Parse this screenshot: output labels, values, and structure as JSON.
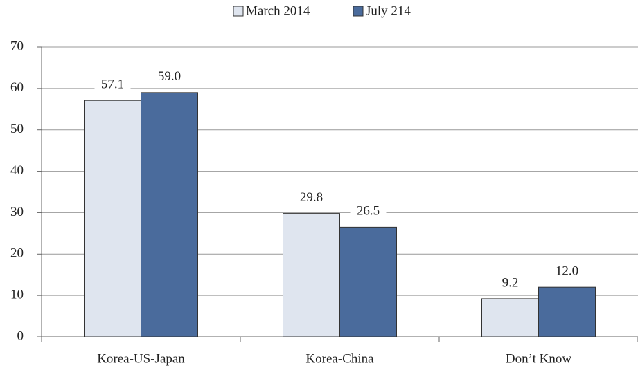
{
  "chart_data": {
    "type": "bar",
    "categories": [
      "Korea-US-Japan",
      "Korea-China",
      "Don’t Know"
    ],
    "series": [
      {
        "name": "March 2014",
        "color": "#dfe5ef",
        "values": [
          57.1,
          29.8,
          9.2
        ],
        "value_labels": [
          "57.1",
          "29.8",
          "9.2"
        ]
      },
      {
        "name": "July 214",
        "color": "#4a6b9c",
        "values": [
          59,
          26.5,
          12
        ],
        "value_labels": [
          "59.0",
          "26.5",
          "12.0"
        ]
      }
    ],
    "ylim": [
      0,
      70
    ],
    "yticks": [
      0,
      10,
      20,
      30,
      40,
      50,
      60,
      70
    ],
    "grid": true,
    "legend": "top"
  }
}
